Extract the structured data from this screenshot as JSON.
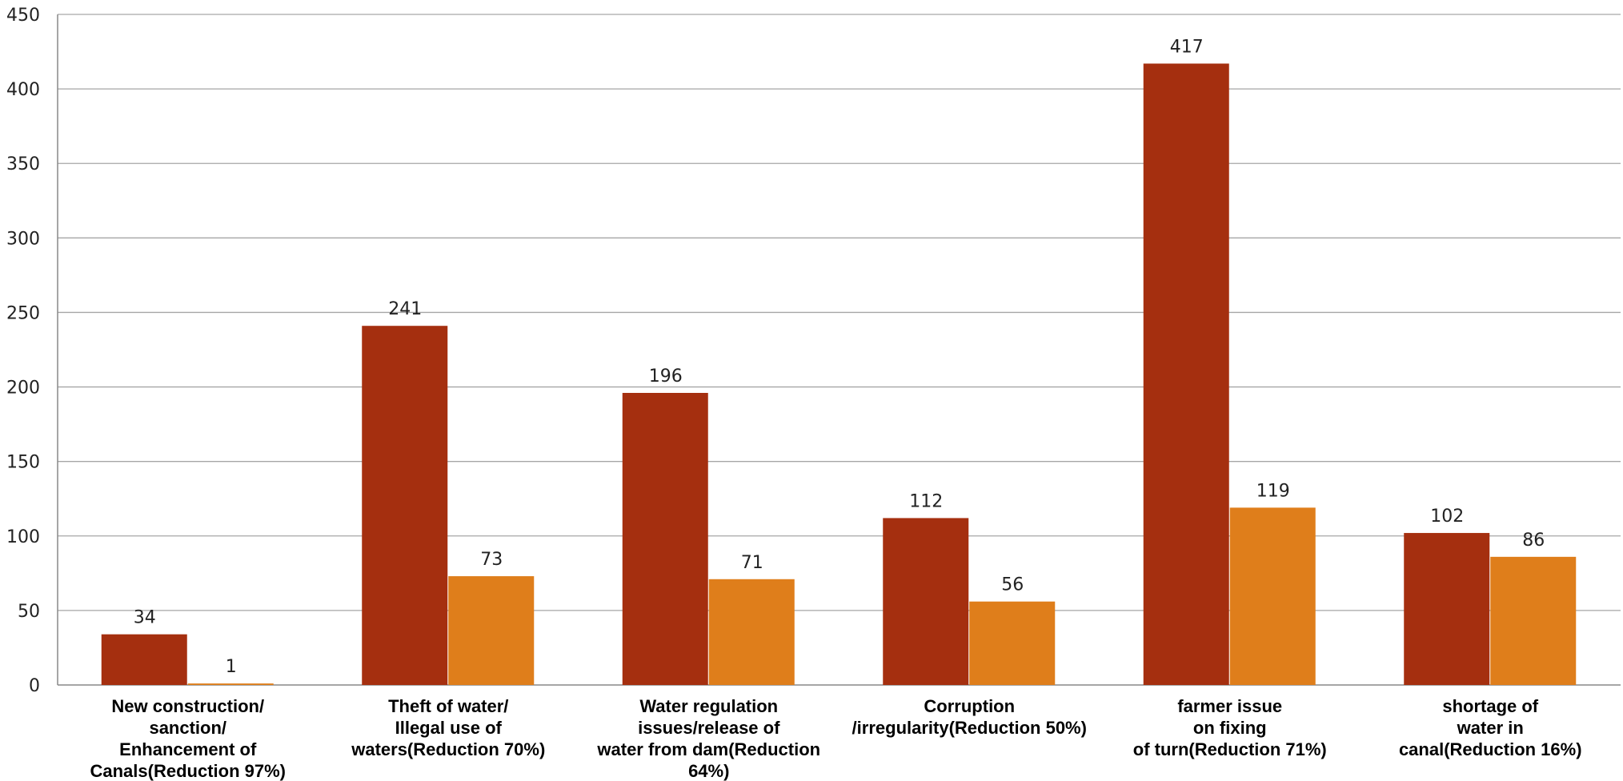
{
  "chart_data": {
    "type": "bar",
    "categories": [
      [
        "New construction/",
        "sanction/",
        "Enhancement of",
        "Canals(Reduction 97%)"
      ],
      [
        "Theft of water/",
        "Illegal use of",
        "waters(Reduction 70%)"
      ],
      [
        "Water regulation",
        "issues/release of",
        "water from dam(Reduction",
        "64%)"
      ],
      [
        "Corruption",
        "/irregularity(Reduction 50%)"
      ],
      [
        "farmer issue",
        "on fixing",
        "of turn(Reduction 71%)"
      ],
      [
        "shortage of",
        "water in",
        "canal(Reduction 16%)"
      ]
    ],
    "series": [
      {
        "color": "#A52F0F",
        "values": [
          34,
          241,
          196,
          112,
          417,
          102
        ]
      },
      {
        "color": "#DF7E1B",
        "values": [
          1,
          73,
          71,
          56,
          119,
          86
        ]
      }
    ],
    "title": "",
    "xlabel": "",
    "ylabel": "",
    "ylim": [
      0,
      450
    ],
    "yticks": [
      0,
      50,
      100,
      150,
      200,
      250,
      300,
      350,
      400,
      450
    ],
    "grid": true,
    "data_labels": true,
    "legend": "none",
    "colors": {
      "grid": "#A6A6A6",
      "axis": "#888888"
    }
  }
}
